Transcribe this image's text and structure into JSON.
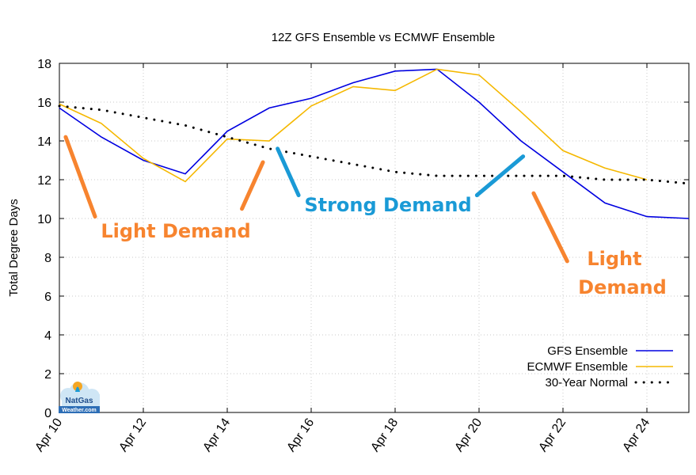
{
  "chart_data": {
    "type": "line",
    "title": "12Z GFS Ensemble vs  ECMWF Ensemble",
    "ylabel": "Total Degree Days",
    "xlabel": "",
    "ylim": [
      0,
      18
    ],
    "yticks": [
      0,
      2,
      4,
      6,
      8,
      10,
      12,
      14,
      16,
      18
    ],
    "xlim": [
      10,
      25
    ],
    "xticks": [
      {
        "x": 10,
        "label": "Apr 10"
      },
      {
        "x": 12,
        "label": "Apr 12"
      },
      {
        "x": 14,
        "label": "Apr 14"
      },
      {
        "x": 16,
        "label": "Apr 16"
      },
      {
        "x": 18,
        "label": "Apr 18"
      },
      {
        "x": 20,
        "label": "Apr 20"
      },
      {
        "x": 22,
        "label": "Apr 22"
      },
      {
        "x": 24,
        "label": "Apr 24"
      }
    ],
    "grid": true,
    "legend_position": "bottom-right",
    "series": [
      {
        "name": "GFS Ensemble",
        "color": "#0000e0",
        "style": "solid",
        "x": [
          10,
          11,
          12,
          13,
          14,
          15,
          16,
          17,
          18,
          19,
          20,
          21,
          22,
          23,
          24,
          25
        ],
        "values": [
          15.7,
          14.2,
          13.0,
          12.3,
          14.5,
          15.7,
          16.2,
          17.0,
          17.6,
          17.7,
          16.0,
          14.0,
          12.4,
          10.8,
          10.1,
          10.0
        ]
      },
      {
        "name": "ECMWF Ensemble",
        "color": "#f5b800",
        "style": "solid",
        "x": [
          10,
          11,
          12,
          13,
          14,
          15,
          16,
          17,
          18,
          19,
          20,
          21,
          22,
          23,
          24
        ],
        "values": [
          15.9,
          14.9,
          13.1,
          11.9,
          14.1,
          14.0,
          15.8,
          16.8,
          16.6,
          17.7,
          17.4,
          15.5,
          13.5,
          12.6,
          12.0
        ]
      },
      {
        "name": "30-Year Normal",
        "color": "#000000",
        "style": "dotted",
        "x": [
          10,
          11,
          12,
          13,
          14,
          15,
          16,
          17,
          18,
          19,
          20,
          21,
          22,
          23,
          24,
          25
        ],
        "values": [
          15.8,
          15.6,
          15.2,
          14.8,
          14.2,
          13.6,
          13.2,
          12.8,
          12.4,
          12.2,
          12.2,
          12.2,
          12.2,
          12.0,
          12.0,
          11.8
        ]
      }
    ],
    "annotations": [
      {
        "lines": [
          "Light Demand"
        ],
        "color": "#f7842f"
      },
      {
        "lines": [
          "Strong Demand"
        ],
        "color": "#1a9ad6"
      },
      {
        "lines": [
          "Light",
          "Demand"
        ],
        "color": "#f7842f"
      }
    ],
    "strokes": [
      {
        "color": "#f7842f",
        "from": [
          10.15,
          14.2
        ],
        "to": [
          10.85,
          10.1
        ]
      },
      {
        "color": "#f7842f",
        "from": [
          14.35,
          10.5
        ],
        "to": [
          14.85,
          12.9
        ]
      },
      {
        "color": "#1a9ad6",
        "from": [
          15.2,
          13.6
        ],
        "to": [
          15.7,
          11.2
        ]
      },
      {
        "color": "#1a9ad6",
        "from": [
          19.95,
          11.2
        ],
        "to": [
          21.05,
          13.2
        ]
      },
      {
        "color": "#f7842f",
        "from": [
          21.3,
          11.3
        ],
        "to": [
          22.1,
          7.8
        ]
      }
    ],
    "logo": {
      "line1": "NatGas",
      "line2": "Weather.com"
    }
  }
}
